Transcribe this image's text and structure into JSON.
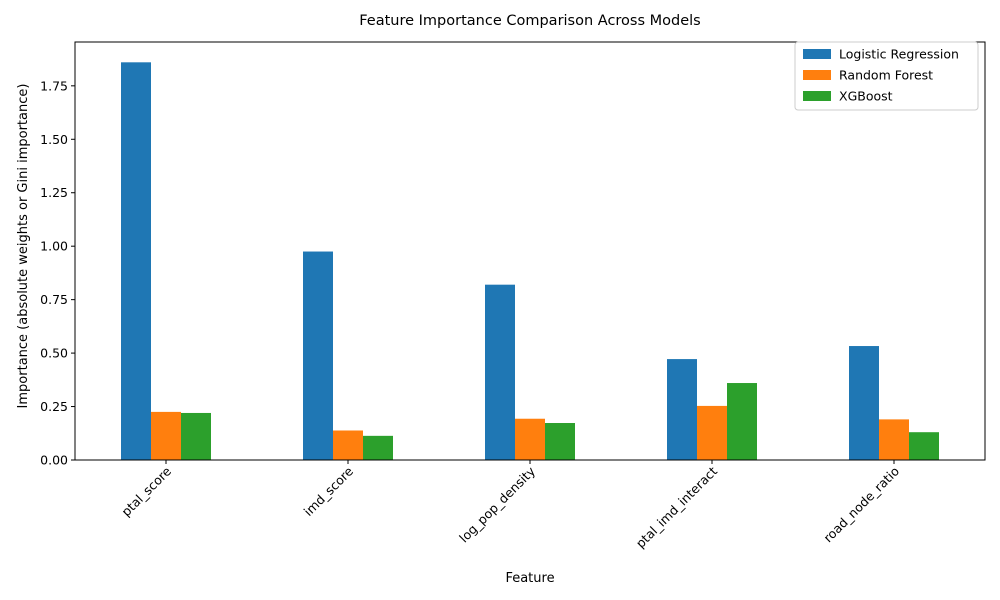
{
  "chart_data": {
    "type": "bar",
    "title": "Feature Importance Comparison Across Models",
    "xlabel": "Feature",
    "ylabel": "Importance (absolute weights or Gini importance)",
    "categories": [
      "ptal_score",
      "imd_score",
      "log_pop_density",
      "ptal_imd_interact",
      "road_node_ratio"
    ],
    "series": [
      {
        "name": "Logistic Regression",
        "color": "#1f77b4",
        "values": [
          1.86,
          0.975,
          0.82,
          0.472,
          0.533
        ]
      },
      {
        "name": "Random Forest",
        "color": "#ff7f0e",
        "values": [
          0.225,
          0.138,
          0.193,
          0.253,
          0.19
        ]
      },
      {
        "name": "XGBoost",
        "color": "#2ca02c",
        "values": [
          0.22,
          0.113,
          0.173,
          0.36,
          0.13
        ]
      }
    ],
    "ylim": [
      0,
      1.955
    ],
    "yticks": [
      "0.00",
      "0.25",
      "0.50",
      "0.75",
      "1.00",
      "1.25",
      "1.50",
      "1.75"
    ],
    "grid": false,
    "legend_position": "top-right"
  }
}
